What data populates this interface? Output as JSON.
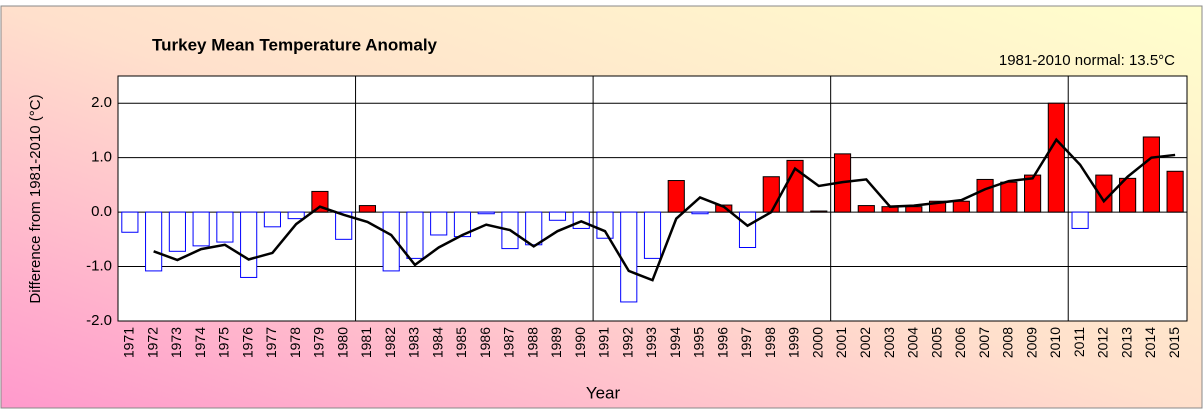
{
  "chart_data": {
    "type": "bar",
    "title": "Turkey Mean Temperature Anomaly",
    "annotation": "1981-2010 normal: 13.5°C",
    "y_label": "Difference from 1981-2010 (°C)",
    "x_label": "Year",
    "categories": [
      "1971",
      "1972",
      "1973",
      "1974",
      "1975",
      "1976",
      "1977",
      "1978",
      "1979",
      "1980",
      "1981",
      "1982",
      "1983",
      "1984",
      "1985",
      "1986",
      "1987",
      "1988",
      "1989",
      "1990",
      "1991",
      "1992",
      "1993",
      "1994",
      "1995",
      "1996",
      "1997",
      "1998",
      "1999",
      "2000",
      "2001",
      "2002",
      "2003",
      "2004",
      "2005",
      "2006",
      "2007",
      "2008",
      "2009",
      "2010",
      "2011",
      "2012",
      "2013",
      "2014",
      "2015"
    ],
    "series": [
      {
        "type": "bar",
        "positive_color": "#ff0000",
        "negative_color": "#0000ff",
        "values": [
          -0.37,
          -1.08,
          -0.72,
          -0.62,
          -0.55,
          -1.2,
          -0.27,
          -0.12,
          0.38,
          -0.5,
          0.12,
          -1.08,
          -0.85,
          -0.42,
          -0.45,
          -0.03,
          -0.67,
          -0.6,
          -0.15,
          -0.3,
          -0.48,
          -1.65,
          -0.85,
          0.58,
          -0.03,
          0.13,
          -0.65,
          0.65,
          0.95,
          0.02,
          1.07,
          0.12,
          0.1,
          0.1,
          0.2,
          0.2,
          0.6,
          0.55,
          0.68,
          2.0,
          -0.3,
          0.68,
          0.62,
          1.38,
          0.75
        ]
      },
      {
        "type": "line",
        "color": "#000000",
        "values": [
          null,
          -0.72,
          -0.88,
          -0.68,
          -0.6,
          -0.87,
          -0.75,
          -0.22,
          0.1,
          -0.05,
          -0.18,
          -0.42,
          -0.97,
          -0.65,
          -0.42,
          -0.23,
          -0.33,
          -0.63,
          -0.35,
          -0.17,
          -0.35,
          -1.08,
          -1.25,
          -0.12,
          0.27,
          0.1,
          -0.25,
          0.0,
          0.8,
          0.48,
          0.55,
          0.6,
          0.1,
          0.12,
          0.17,
          0.22,
          0.42,
          0.57,
          0.62,
          1.33,
          0.87,
          0.2,
          0.65,
          1.0,
          1.05
        ]
      }
    ],
    "ylim": [
      -2,
      2.5
    ],
    "yticks": [
      {
        "value": -2,
        "label": "-2.0"
      },
      {
        "value": -1,
        "label": "-1.0"
      },
      {
        "value": 0,
        "label": "0.0"
      },
      {
        "value": 1,
        "label": "1.0"
      },
      {
        "value": 2,
        "label": "2.0"
      }
    ],
    "grid": true
  }
}
